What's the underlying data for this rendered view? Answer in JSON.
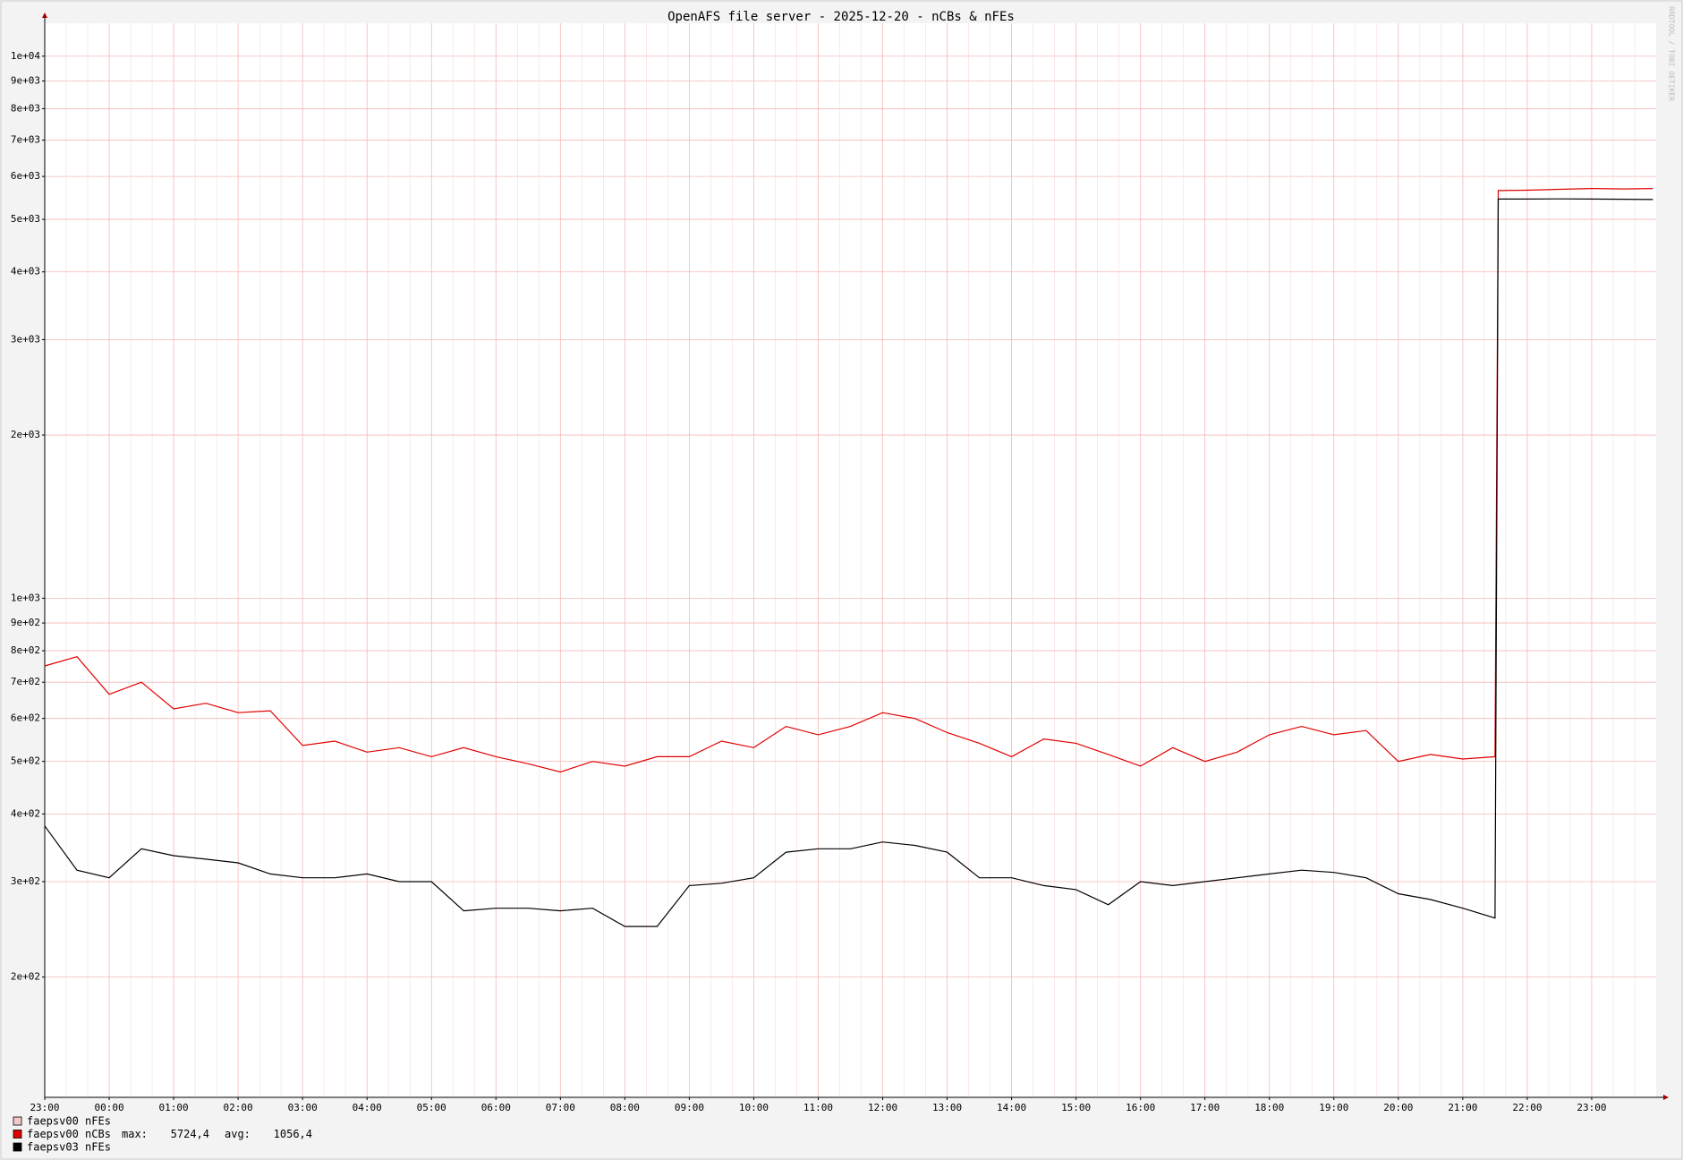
{
  "chart_data": {
    "type": "line",
    "title": "OpenAFS file server - 2025-12-20 - nCBs & nFEs",
    "watermark": "RRDTOOL / TOBI OETIKER",
    "log_scale": true,
    "grid": true,
    "grid_color": "#f4b8b8",
    "x": [
      0,
      0.5,
      1,
      1.5,
      2,
      2.5,
      3,
      3.5,
      4,
      4.5,
      5,
      5.5,
      6,
      6.5,
      7,
      7.5,
      8,
      8.5,
      9,
      9.5,
      10,
      10.5,
      11,
      11.5,
      12,
      12.5,
      13,
      13.5,
      14,
      14.5,
      15,
      15.5,
      16,
      16.5,
      17,
      17.5,
      18,
      18.5,
      19,
      19.5,
      20,
      20.5,
      21,
      21.5,
      22,
      22.5,
      22.55,
      23,
      23.5,
      24,
      24.5,
      24.95
    ],
    "xlim": [
      0,
      25
    ],
    "xticks": [
      {
        "value": 0,
        "label": "23:00"
      },
      {
        "value": 1,
        "label": "00:00"
      },
      {
        "value": 2,
        "label": "01:00"
      },
      {
        "value": 3,
        "label": "02:00"
      },
      {
        "value": 4,
        "label": "03:00"
      },
      {
        "value": 5,
        "label": "04:00"
      },
      {
        "value": 6,
        "label": "05:00"
      },
      {
        "value": 7,
        "label": "06:00"
      },
      {
        "value": 8,
        "label": "07:00"
      },
      {
        "value": 9,
        "label": "08:00"
      },
      {
        "value": 10,
        "label": "09:00"
      },
      {
        "value": 11,
        "label": "10:00"
      },
      {
        "value": 12,
        "label": "11:00"
      },
      {
        "value": 13,
        "label": "12:00"
      },
      {
        "value": 14,
        "label": "13:00"
      },
      {
        "value": 15,
        "label": "14:00"
      },
      {
        "value": 16,
        "label": "15:00"
      },
      {
        "value": 17,
        "label": "16:00"
      },
      {
        "value": 18,
        "label": "17:00"
      },
      {
        "value": 19,
        "label": "18:00"
      },
      {
        "value": 20,
        "label": "19:00"
      },
      {
        "value": 21,
        "label": "20:00"
      },
      {
        "value": 22,
        "label": "21:00"
      },
      {
        "value": 23,
        "label": "22:00"
      },
      {
        "value": 24,
        "label": "23:00"
      }
    ],
    "ylim": [
      120,
      11500
    ],
    "yticks": [
      {
        "value": 200,
        "label": "2e+02"
      },
      {
        "value": 300,
        "label": "3e+02"
      },
      {
        "value": 400,
        "label": "4e+02"
      },
      {
        "value": 500,
        "label": "5e+02"
      },
      {
        "value": 600,
        "label": "6e+02"
      },
      {
        "value": 700,
        "label": "7e+02"
      },
      {
        "value": 800,
        "label": "8e+02"
      },
      {
        "value": 900,
        "label": "9e+02"
      },
      {
        "value": 1000,
        "label": "1e+03"
      },
      {
        "value": 2000,
        "label": "2e+03"
      },
      {
        "value": 3000,
        "label": "3e+03"
      },
      {
        "value": 4000,
        "label": "4e+03"
      },
      {
        "value": 5000,
        "label": "5e+03"
      },
      {
        "value": 6000,
        "label": "6e+03"
      },
      {
        "value": 7000,
        "label": "7e+03"
      },
      {
        "value": 8000,
        "label": "8e+03"
      },
      {
        "value": 9000,
        "label": "9e+03"
      },
      {
        "value": 10000,
        "label": "1e+04"
      }
    ],
    "series": [
      {
        "name": "faepsv00 nFEs",
        "color": "#f4c8c8"
      },
      {
        "name": "faepsv00 nCBs",
        "color": "#e00000",
        "stats": [
          {
            "label": "max:",
            "value": "5724,4"
          },
          {
            "label": "avg:",
            "value": "1056,4"
          }
        ],
        "values": [
          750,
          780,
          665,
          700,
          625,
          640,
          615,
          620,
          535,
          545,
          520,
          530,
          510,
          530,
          510,
          495,
          478,
          500,
          490,
          510,
          510,
          545,
          530,
          580,
          560,
          580,
          615,
          600,
          565,
          540,
          510,
          550,
          540,
          515,
          490,
          530,
          500,
          520,
          560,
          580,
          560,
          570,
          500,
          515,
          505,
          510,
          5650,
          5660,
          5680,
          5700,
          5690,
          5700
        ]
      },
      {
        "name": "faepsv03 nFEs",
        "color": "#000000",
        "values": [
          380,
          315,
          305,
          345,
          335,
          330,
          325,
          310,
          305,
          305,
          310,
          300,
          300,
          265,
          268,
          268,
          265,
          268,
          248,
          248,
          295,
          298,
          305,
          340,
          345,
          345,
          355,
          350,
          340,
          305,
          305,
          295,
          290,
          272,
          300,
          295,
          300,
          305,
          310,
          315,
          312,
          305,
          285,
          278,
          268,
          257,
          5450,
          5450,
          5455,
          5450,
          5445,
          5440
        ]
      }
    ]
  }
}
